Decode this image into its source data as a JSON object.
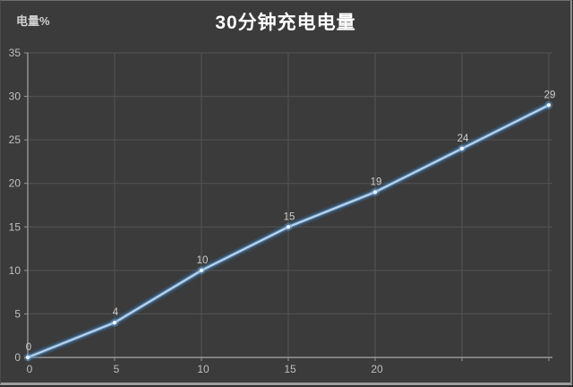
{
  "header": {
    "title": "30分钟充电电量"
  },
  "chart_data": {
    "type": "line",
    "title": "30分钟充电电量",
    "ylabel": "电量%",
    "xlabel": "",
    "x": [
      0,
      5,
      10,
      15,
      20,
      25,
      30
    ],
    "values": [
      0,
      4,
      10,
      15,
      19,
      24,
      29
    ],
    "point_labels": [
      "0",
      "4",
      "10",
      "15",
      "19",
      "24",
      "29"
    ],
    "series_name": "充电电量",
    "xlim": [
      0,
      30
    ],
    "ylim": [
      0,
      35
    ],
    "x_axis": {
      "gridline_values": [
        5,
        10,
        15,
        20,
        25,
        30
      ],
      "tick_values": [
        0,
        5,
        10,
        15,
        20,
        25,
        30
      ],
      "visible_tick_labels": [
        "0",
        "5",
        "10",
        "15",
        "20"
      ],
      "visible_tick_label_values": [
        0,
        5,
        10,
        15,
        20
      ]
    },
    "y_axis": {
      "tick_values": [
        0,
        5,
        10,
        15,
        20,
        25,
        30,
        35
      ],
      "tick_labels": [
        "0",
        "5",
        "10",
        "15",
        "20",
        "25",
        "30",
        "35"
      ]
    },
    "grid": true,
    "legend": "none",
    "colors": {
      "background": "#3b3b3b",
      "gridline": "#545454",
      "axis_line": "#969696",
      "tick_label": "#bfbfbf",
      "data_label": "#cccccc",
      "title": "#ffffff",
      "y_title": "#cfcfcf",
      "line_glow": "#2e75b6",
      "line_mid": "#6fa8dc",
      "line_core": "#bdd7ee",
      "marker": "#e9f2fb"
    }
  }
}
